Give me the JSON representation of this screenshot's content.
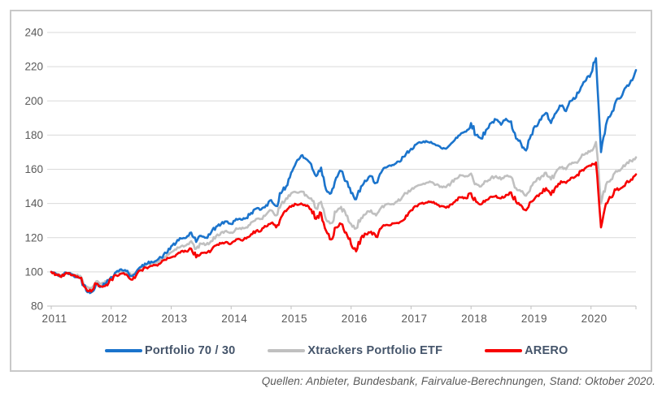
{
  "caption": "Quellen: Anbieter, Bundesbank, Fairvalue-Berechnungen, Stand: Oktober 2020.",
  "colors": {
    "blue": "#1b74cc",
    "gray": "#c0c0c0",
    "red": "#f70000",
    "grid": "#d9d9d9",
    "axis": "#bfbfbf",
    "tick_text": "#595959",
    "legend_text": "#44546a"
  },
  "chart_data": {
    "type": "line",
    "title": "",
    "xlabel": "",
    "ylabel": "",
    "x_start_month": "2011-01",
    "x_end_month": "2020-10",
    "points_per_series": 118,
    "xticks": [
      2011,
      2012,
      2013,
      2014,
      2015,
      2016,
      2017,
      2018,
      2019,
      2020
    ],
    "ylim": [
      80,
      240
    ],
    "yticks": [
      80,
      100,
      120,
      140,
      160,
      180,
      200,
      220,
      240
    ],
    "grid": true,
    "legend_position": "bottom",
    "index_base": 100,
    "series": [
      {
        "name": "Portfolio 70 / 30",
        "color_key": "blue",
        "values": [
          100,
          98.5,
          97.5,
          99.5,
          98.5,
          97,
          96,
          89,
          88,
          93,
          91.5,
          93.5,
          97,
          100,
          101.5,
          100.5,
          97.5,
          100,
          103,
          104.5,
          106,
          106.5,
          108.5,
          111,
          115,
          117,
          119.5,
          120,
          123,
          117.5,
          121,
          120,
          123,
          126.5,
          128,
          129.5,
          128,
          131,
          130.5,
          131.5,
          134.5,
          137,
          136.5,
          139,
          142,
          138.5,
          146,
          150,
          158,
          164,
          168,
          166,
          163,
          156,
          161,
          148,
          146,
          155,
          159,
          153,
          146,
          142.5,
          150,
          153,
          156,
          152,
          158,
          161,
          162,
          163.5,
          165,
          169,
          172,
          174.5,
          175.5,
          176.5,
          176,
          174,
          172.5,
          172,
          175,
          178.5,
          181,
          182,
          187,
          180,
          178,
          183,
          187,
          189,
          186,
          189.5,
          188,
          178,
          175,
          171,
          180,
          185,
          189,
          193,
          187,
          193,
          197,
          194,
          200,
          202,
          208,
          212,
          216,
          225,
          170,
          186,
          192,
          200,
          202,
          208,
          212,
          218
        ]
      },
      {
        "name": "Xtrackers Portfolio ETF",
        "color_key": "gray",
        "values": [
          100,
          99,
          98,
          99.5,
          99,
          98,
          97,
          91.5,
          90.5,
          94.5,
          93,
          94.5,
          97,
          99.5,
          100.5,
          100,
          98,
          100,
          102.5,
          104,
          105,
          105.5,
          107,
          109,
          111.5,
          113,
          115,
          115.5,
          118,
          113.5,
          116.5,
          116,
          118,
          121,
          123,
          124,
          123,
          125.5,
          125,
          126,
          129,
          131,
          131,
          133.5,
          136,
          133,
          139.5,
          143,
          146,
          146.5,
          147,
          145,
          143,
          137,
          141,
          130.5,
          128.5,
          135,
          138,
          133,
          128,
          125.5,
          131.5,
          134,
          136,
          133,
          137.5,
          139.5,
          139.5,
          141,
          142.5,
          146,
          148,
          150,
          151,
          152,
          152.5,
          151,
          150,
          149.5,
          152,
          154.5,
          156.5,
          156,
          157.5,
          151.5,
          150,
          153,
          155,
          156,
          154,
          156,
          155.5,
          149,
          147,
          144.5,
          150,
          153,
          155.5,
          158,
          154,
          158.5,
          161,
          160,
          163,
          164,
          167,
          169.5,
          171,
          176,
          140,
          151,
          154,
          159,
          160,
          163,
          165,
          167
        ]
      },
      {
        "name": "ARERO",
        "color_key": "red",
        "values": [
          100,
          98.5,
          97,
          99.5,
          98,
          97,
          96.5,
          90,
          88.5,
          93,
          91.5,
          92.5,
          95.5,
          98,
          99,
          98.5,
          95.5,
          98,
          101,
          102.5,
          103.5,
          104,
          105.5,
          107,
          108.5,
          110,
          112,
          112,
          113.5,
          108.5,
          111,
          111,
          112.5,
          115.5,
          116.5,
          117.5,
          116.5,
          119,
          118.5,
          119.5,
          122,
          124,
          124,
          126.5,
          128.5,
          126,
          132,
          135.5,
          138,
          139.5,
          140,
          138.5,
          136.5,
          131,
          134.5,
          124,
          119,
          126,
          128,
          123,
          116,
          112,
          120,
          122,
          123.5,
          120.5,
          125.5,
          127.5,
          127.5,
          128.5,
          129.5,
          133,
          136,
          138.5,
          140,
          140.5,
          141,
          140,
          138.5,
          137.5,
          139.5,
          142,
          143.5,
          143,
          146,
          141,
          139.5,
          142,
          144,
          144.5,
          143,
          145,
          146.5,
          141,
          139,
          136,
          141,
          144,
          146,
          149,
          145,
          150,
          153,
          152,
          155,
          156,
          159,
          161,
          162,
          164,
          126,
          140,
          143.5,
          148,
          149,
          152,
          154,
          157
        ]
      }
    ]
  }
}
